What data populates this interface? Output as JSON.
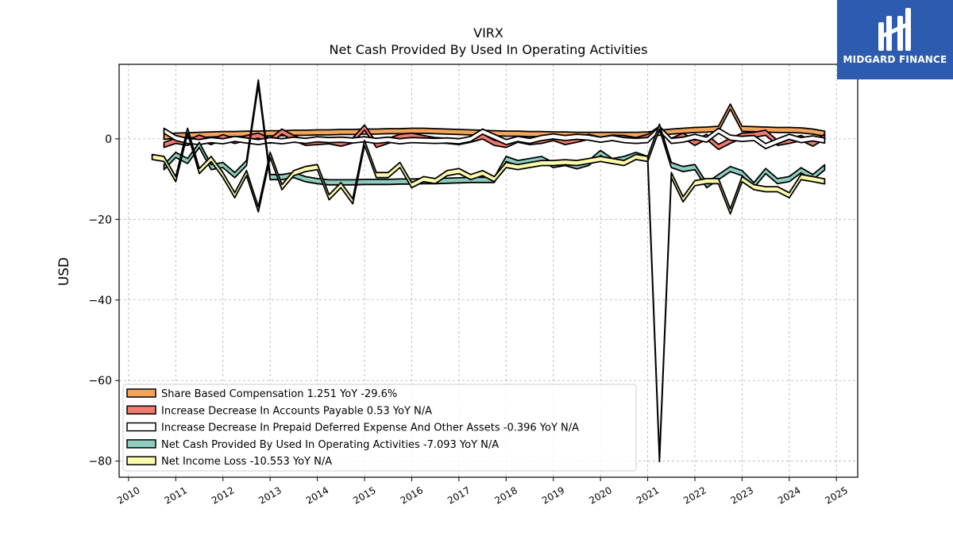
{
  "chart_data": {
    "type": "area",
    "title": "VIRX",
    "subtitle": "Net Cash Provided By Used In Operating Activities",
    "ylabel": "USD",
    "xlabel": "",
    "xlim": [
      2009.8,
      2025.45
    ],
    "ylim": [
      -84,
      18.5
    ],
    "yticks": [
      0,
      -20,
      -40,
      -60,
      -80
    ],
    "xticks": [
      "2010",
      "2011",
      "2012",
      "2013",
      "2014",
      "2015",
      "2016",
      "2017",
      "2018",
      "2019",
      "2020",
      "2021",
      "2022",
      "2023",
      "2024",
      "2025"
    ],
    "grid": true,
    "legend_position": "lower-left",
    "series": [
      {
        "name": "Share Based Compensation",
        "legend": "Share Based Compensation  1.251 YoY -29.6%",
        "color": "#f5a55a",
        "x": [
          2010.75,
          2011.0,
          2011.25,
          2011.5,
          2011.75,
          2012.0,
          2012.25,
          2012.5,
          2012.75,
          2013.0,
          2013.25,
          2013.5,
          2013.75,
          2014.0,
          2014.25,
          2014.5,
          2014.75,
          2015.0,
          2015.25,
          2015.5,
          2015.75,
          2016.0,
          2016.25,
          2016.5,
          2016.75,
          2017.0,
          2017.25,
          2017.5,
          2017.75,
          2018.0,
          2018.25,
          2018.5,
          2018.75,
          2019.0,
          2019.25,
          2019.5,
          2019.75,
          2020.0,
          2020.25,
          2020.5,
          2020.75,
          2021.0,
          2021.25,
          2021.5,
          2021.75,
          2022.0,
          2022.25,
          2022.5,
          2022.75,
          2023.0,
          2023.25,
          2023.5,
          2023.75,
          2024.0,
          2024.25,
          2024.5,
          2024.75
        ],
        "values": [
          0.5,
          0.8,
          0.9,
          1.0,
          1.1,
          1.2,
          1.2,
          1.3,
          1.3,
          1.4,
          1.4,
          1.5,
          1.5,
          1.6,
          1.6,
          1.7,
          1.7,
          1.8,
          1.8,
          1.9,
          1.9,
          2.0,
          2.0,
          1.9,
          1.8,
          1.7,
          1.6,
          1.5,
          1.4,
          1.3,
          1.3,
          1.2,
          1.2,
          1.1,
          1.1,
          1.0,
          1.0,
          1.0,
          1.0,
          1.0,
          1.0,
          1.1,
          1.5,
          1.8,
          2.0,
          2.2,
          2.3,
          2.5,
          8.0,
          2.5,
          2.4,
          2.3,
          2.2,
          2.2,
          2.1,
          1.8,
          1.3
        ]
      },
      {
        "name": "Increase Decrease In Accounts Payable",
        "legend": "Increase Decrease In Accounts Payable  0.53 YoY N/A",
        "color": "#f07a6e",
        "x": [
          2010.75,
          2011.0,
          2011.25,
          2011.5,
          2011.75,
          2012.0,
          2012.25,
          2012.5,
          2012.75,
          2013.0,
          2013.25,
          2013.5,
          2013.75,
          2014.0,
          2014.25,
          2014.5,
          2014.75,
          2015.0,
          2015.25,
          2015.5,
          2015.75,
          2016.0,
          2016.25,
          2016.5,
          2016.75,
          2017.0,
          2017.25,
          2017.5,
          2017.75,
          2018.0,
          2018.25,
          2018.5,
          2018.75,
          2019.0,
          2019.25,
          2019.5,
          2019.75,
          2020.0,
          2020.25,
          2020.5,
          2020.75,
          2021.0,
          2021.25,
          2021.5,
          2021.75,
          2022.0,
          2022.25,
          2022.5,
          2022.75,
          2023.0,
          2023.25,
          2023.5,
          2023.75,
          2024.0,
          2024.25,
          2024.5,
          2024.75
        ],
        "values": [
          -1.5,
          -0.5,
          -1.0,
          0.3,
          -0.8,
          0.4,
          -0.5,
          0.2,
          0.8,
          -0.5,
          1.8,
          0.2,
          -1.0,
          -0.8,
          -0.6,
          -1.2,
          -0.4,
          2.8,
          -1.5,
          -0.5,
          0.5,
          0.8,
          0.2,
          -0.3,
          -0.5,
          -0.8,
          -0.2,
          0.6,
          -1.0,
          -1.5,
          -0.2,
          -0.8,
          -0.5,
          0.2,
          -0.8,
          -0.2,
          0.5,
          -0.2,
          0.3,
          0.2,
          -0.3,
          0.5,
          2.5,
          -0.5,
          0.8,
          -1.0,
          0.5,
          -2.0,
          -0.5,
          0.8,
          1.0,
          1.5,
          -1.0,
          -0.5,
          0.2,
          -1.2,
          0.53
        ]
      },
      {
        "name": "Increase Decrease In Prepaid Deferred Expense And Other Assets",
        "legend": "Increase Decrease In Prepaid Deferred Expense And Other Assets  -0.396 YoY N/A",
        "color": "#ffffff",
        "x": [
          2010.75,
          2011.0,
          2011.25,
          2011.5,
          2011.75,
          2012.0,
          2012.25,
          2012.5,
          2012.75,
          2013.0,
          2013.25,
          2013.5,
          2013.75,
          2014.0,
          2014.25,
          2014.5,
          2014.75,
          2015.0,
          2015.25,
          2015.5,
          2015.75,
          2016.0,
          2016.25,
          2016.5,
          2016.75,
          2017.0,
          2017.25,
          2017.5,
          2017.75,
          2018.0,
          2018.25,
          2018.5,
          2018.75,
          2019.0,
          2019.25,
          2019.5,
          2019.75,
          2020.0,
          2020.25,
          2020.5,
          2020.75,
          2021.0,
          2021.25,
          2021.5,
          2021.75,
          2022.0,
          2022.25,
          2022.5,
          2022.75,
          2023.0,
          2023.25,
          2023.5,
          2023.75,
          2024.0,
          2024.25,
          2024.5,
          2024.75
        ],
        "values": [
          2.0,
          0.2,
          -0.5,
          -0.8,
          -0.3,
          -0.6,
          0.0,
          -0.4,
          -0.8,
          -0.3,
          -0.6,
          -0.2,
          -0.5,
          -0.1,
          -0.3,
          -0.2,
          -0.4,
          -0.1,
          -0.5,
          -0.2,
          -0.6,
          -0.3,
          -0.4,
          -0.5,
          -0.4,
          -0.6,
          0.0,
          1.8,
          0.5,
          -0.8,
          0.0,
          -0.5,
          0.2,
          0.6,
          0.2,
          0.5,
          0.3,
          -0.2,
          0.2,
          -0.3,
          -0.5,
          -0.3,
          2.5,
          -0.5,
          -0.2,
          0.5,
          -0.2,
          2.0,
          0.3,
          0.0,
          0.2,
          -1.8,
          -0.6,
          0.5,
          -0.3,
          0.1,
          -0.396
        ]
      },
      {
        "name": "Net Cash Provided By Used In Operating Activities",
        "legend": "Net Cash Provided By Used In Operating Activities  -7.093 YoY N/A",
        "color": "#8dcdc0",
        "x": [
          2010.75,
          2011.0,
          2011.25,
          2011.5,
          2011.75,
          2012.0,
          2012.25,
          2012.5,
          2012.75,
          2013.0,
          2013.25,
          2013.5,
          2013.75,
          2014.0,
          2014.25,
          2014.5,
          2014.75,
          2015.0,
          2015.25,
          2015.5,
          2015.75,
          2016.0,
          2016.25,
          2016.5,
          2016.75,
          2017.0,
          2017.25,
          2017.5,
          2017.75,
          2018.0,
          2018.25,
          2018.5,
          2018.75,
          2019.0,
          2019.25,
          2019.5,
          2019.75,
          2020.0,
          2020.25,
          2020.5,
          2020.75,
          2021.0,
          2021.25,
          2021.5,
          2021.75,
          2022.0,
          2022.25,
          2022.5,
          2022.75,
          2023.0,
          2023.25,
          2023.5,
          2023.75,
          2024.0,
          2024.25,
          2024.5,
          2024.75
        ],
        "values": [
          -7.0,
          -4.0,
          -5.5,
          -1.5,
          -7.0,
          -6.5,
          -9.0,
          -6.0,
          14.0,
          -9.5,
          -9.5,
          -9.0,
          -10.0,
          -10.5,
          -10.8,
          -10.8,
          -10.8,
          -10.7,
          -10.7,
          -10.7,
          -10.6,
          -10.6,
          -10.5,
          -10.5,
          -10.4,
          -10.3,
          -10.2,
          -10.2,
          -10.2,
          -5.0,
          -6.0,
          -5.5,
          -5.0,
          -6.5,
          -6.0,
          -6.8,
          -6.0,
          -3.5,
          -5.5,
          -5.0,
          -4.0,
          -5.0,
          3.0,
          -6.5,
          -7.5,
          -7.0,
          -11.5,
          -9.5,
          -7.5,
          -8.5,
          -11.5,
          -8.0,
          -10.5,
          -10.0,
          -7.8,
          -9.5,
          -7.093
        ]
      },
      {
        "name": "Net Income Loss",
        "legend": "Net Income Loss  -10.553 YoY N/A",
        "color": "#fffbad",
        "x": [
          2010.5,
          2010.75,
          2011.0,
          2011.25,
          2011.5,
          2011.75,
          2012.0,
          2012.25,
          2012.5,
          2012.75,
          2013.0,
          2013.25,
          2013.5,
          2013.75,
          2014.0,
          2014.25,
          2014.5,
          2014.75,
          2015.0,
          2015.25,
          2015.5,
          2015.75,
          2016.0,
          2016.25,
          2016.5,
          2016.75,
          2017.0,
          2017.25,
          2017.5,
          2017.75,
          2018.0,
          2018.25,
          2018.5,
          2018.75,
          2019.0,
          2019.25,
          2019.5,
          2019.75,
          2020.0,
          2020.25,
          2020.5,
          2020.75,
          2021.0,
          2021.25,
          2021.5,
          2021.75,
          2022.0,
          2022.25,
          2022.5,
          2022.75,
          2023.0,
          2023.25,
          2023.5,
          2023.75,
          2024.0,
          2024.25,
          2024.5,
          2024.75
        ],
        "values": [
          -4.5,
          -5.0,
          -10.0,
          2.0,
          -8.0,
          -5.0,
          -9.0,
          -14.0,
          -8.5,
          -17.5,
          -4.0,
          -12.0,
          -8.5,
          -7.5,
          -7.0,
          -14.5,
          -11.5,
          -15.5,
          -1.0,
          -9.0,
          -9.0,
          -6.5,
          -11.5,
          -10.0,
          -10.5,
          -8.5,
          -8.0,
          -9.5,
          -8.5,
          -10.0,
          -6.5,
          -7.0,
          -6.5,
          -6.0,
          -6.0,
          -5.8,
          -6.0,
          -5.5,
          -5.0,
          -5.5,
          -6.0,
          -4.5,
          -5.0,
          -79.5,
          -9.0,
          -15.0,
          -11.0,
          -10.5,
          -10.5,
          -18.0,
          -10.0,
          -12.0,
          -12.5,
          -12.5,
          -14.0,
          -9.5,
          -10.0,
          -10.553
        ]
      }
    ]
  },
  "logo": {
    "text": "MIDGARD FINANCE"
  }
}
